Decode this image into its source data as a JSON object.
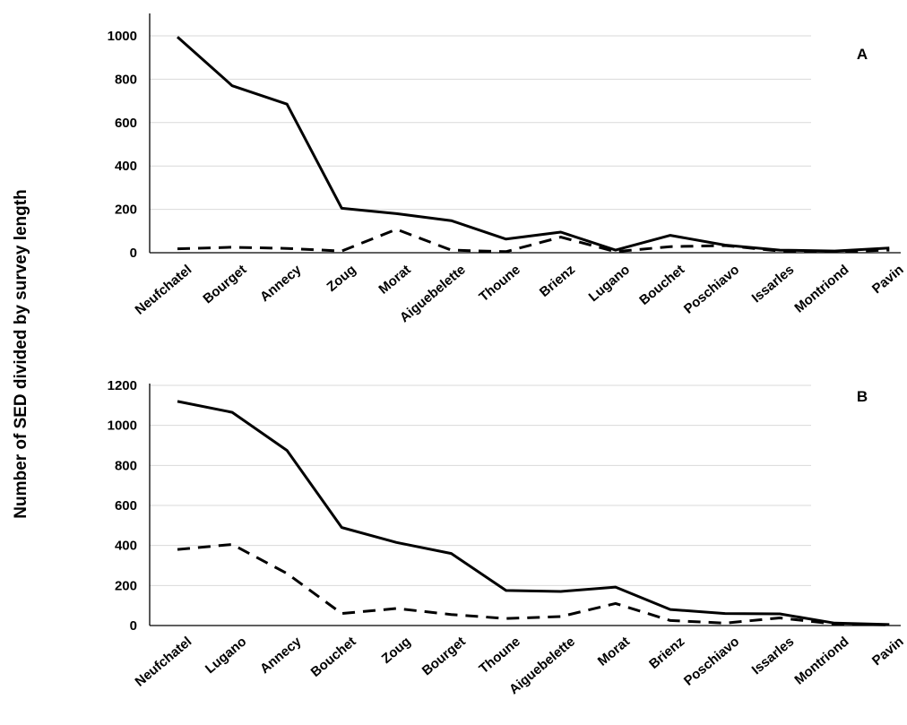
{
  "y_axis_title": "Number of SED divided by survey length",
  "chart_data": [
    {
      "type": "line",
      "panel_label": "A",
      "categories": [
        "Neufchatel",
        "Bourget",
        "Annecy",
        "Zoug",
        "Morat",
        "Aiguebelette",
        "Thoune",
        "Brienz",
        "Lugano",
        "Bouchet",
        "Poschiavo",
        "Issarles",
        "Montriond",
        "Pavin"
      ],
      "yticks": [
        "0",
        "200",
        "400",
        "600",
        "800",
        "1000"
      ],
      "ylim": [
        0,
        1100
      ],
      "grid": true,
      "series": [
        {
          "style": "solid",
          "values": [
            995,
            770,
            685,
            205,
            180,
            148,
            63,
            95,
            12,
            80,
            35,
            12,
            8,
            22
          ]
        },
        {
          "style": "dashed",
          "values": [
            18,
            25,
            20,
            8,
            108,
            12,
            5,
            72,
            5,
            28,
            33,
            8,
            5,
            12
          ]
        }
      ]
    },
    {
      "type": "line",
      "panel_label": "B",
      "categories": [
        "Neufchatel",
        "Lugano",
        "Annecy",
        "Bouchet",
        "Zoug",
        "Bourget",
        "Thoune",
        "Aiguebelette",
        "Morat",
        "Brienz",
        "Poschiavo",
        "Issarles",
        "Montriond",
        "Pavin"
      ],
      "yticks": [
        "0",
        "200",
        "400",
        "600",
        "800",
        "1000",
        "1200"
      ],
      "ylim": [
        0,
        1200
      ],
      "grid": true,
      "series": [
        {
          "style": "solid",
          "values": [
            1120,
            1065,
            875,
            490,
            415,
            360,
            175,
            170,
            192,
            80,
            60,
            58,
            12,
            5
          ]
        },
        {
          "style": "dashed",
          "values": [
            380,
            405,
            260,
            60,
            85,
            55,
            35,
            45,
            110,
            25,
            12,
            38,
            8,
            3
          ]
        }
      ]
    }
  ]
}
